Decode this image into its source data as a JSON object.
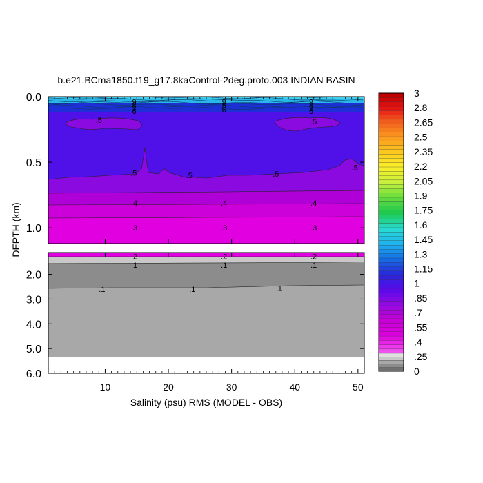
{
  "chart_data": {
    "type": "heatmap",
    "title": "b.e21.BCma1850.f19_g17.8kaControl-2deg.proto.003 INDIAN BASIN",
    "xlabel": "Salinity (psu) RMS (MODEL - OBS)",
    "ylabel": "DEPTH (km)",
    "xlim": [
      1,
      51
    ],
    "x_ticks": [
      "10",
      "20",
      "30",
      "40",
      "50"
    ],
    "upper_panel": {
      "ylim": [
        0.0,
        1.12
      ],
      "y_ticks": [
        "0.0",
        "0.5",
        "1.0"
      ]
    },
    "lower_panel": {
      "ylim": [
        1.12,
        6.0
      ],
      "y_ticks": [
        "2.0",
        "3.0",
        "4.0",
        "5.0",
        "6.0"
      ]
    },
    "colorbar": {
      "labels": [
        "3",
        "2.8",
        "2.65",
        "2.5",
        "2.35",
        "2.2",
        "2.05",
        "1.9",
        "1.75",
        "1.6",
        "1.45",
        "1.3",
        "1.15",
        "1",
        ".85",
        ".7",
        ".55",
        ".4",
        ".25",
        "0"
      ]
    },
    "contour_labels": {
      "upper": [
        {
          "x": 14.6,
          "y": 0.04,
          "text": "9"
        },
        {
          "x": 14.6,
          "y": 0.065,
          "text": "8"
        },
        {
          "x": 14.6,
          "y": 0.09,
          "text": "7"
        },
        {
          "x": 14.6,
          "y": 0.11,
          "text": "6"
        },
        {
          "x": 28.8,
          "y": 0.04,
          "text": "9"
        },
        {
          "x": 28.8,
          "y": 0.065,
          "text": "8"
        },
        {
          "x": 28.8,
          "y": 0.1,
          "text": "6"
        },
        {
          "x": 42.6,
          "y": 0.04,
          "text": "9"
        },
        {
          "x": 42.6,
          "y": 0.065,
          "text": "8"
        },
        {
          "x": 42.6,
          "y": 0.09,
          "text": "7"
        },
        {
          "x": 42.6,
          "y": 0.11,
          "text": "6"
        },
        {
          "x": 9.0,
          "y": 0.18,
          "text": ".5"
        },
        {
          "x": 43.0,
          "y": 0.19,
          "text": ".5"
        },
        {
          "x": 14.5,
          "y": 0.58,
          "text": ".5"
        },
        {
          "x": 23.3,
          "y": 0.6,
          "text": ".5"
        },
        {
          "x": 37.0,
          "y": 0.59,
          "text": ".5"
        },
        {
          "x": 49.5,
          "y": 0.54,
          "text": ".5"
        },
        {
          "x": 14.6,
          "y": 0.81,
          "text": ".4"
        },
        {
          "x": 28.8,
          "y": 0.81,
          "text": ".4"
        },
        {
          "x": 43.0,
          "y": 0.81,
          "text": ".4"
        },
        {
          "x": 14.6,
          "y": 1.0,
          "text": ".3"
        },
        {
          "x": 28.8,
          "y": 1.0,
          "text": ".3"
        },
        {
          "x": 43.0,
          "y": 1.0,
          "text": ".3"
        }
      ],
      "lower": [
        {
          "x": 14.6,
          "y": 1.27,
          "text": ".2"
        },
        {
          "x": 28.8,
          "y": 1.27,
          "text": ".2"
        },
        {
          "x": 43.0,
          "y": 1.27,
          "text": ".2"
        },
        {
          "x": 14.6,
          "y": 1.62,
          "text": ".1"
        },
        {
          "x": 28.8,
          "y": 1.62,
          "text": ".1"
        },
        {
          "x": 43.0,
          "y": 1.62,
          "text": ".1"
        },
        {
          "x": 9.5,
          "y": 2.6,
          "text": ".1"
        },
        {
          "x": 23.8,
          "y": 2.6,
          "text": ".1"
        },
        {
          "x": 37.5,
          "y": 2.55,
          "text": ".1"
        }
      ]
    },
    "colors": {
      "surface": "#29b6e8",
      "deep_blue": "#1e2fd8",
      "indigo": "#5010e8",
      "purple": "#8a0ae0",
      "violet": "#b000d8",
      "magenta_dark": "#cc00d8",
      "magenta": "#e000e0",
      "magenta_light": "#f030f0",
      "grey_light": "#c8c8c8",
      "grey_mid": "#a8a8a8",
      "grey_dark": "#8c8c8c",
      "white": "#ffffff"
    }
  }
}
